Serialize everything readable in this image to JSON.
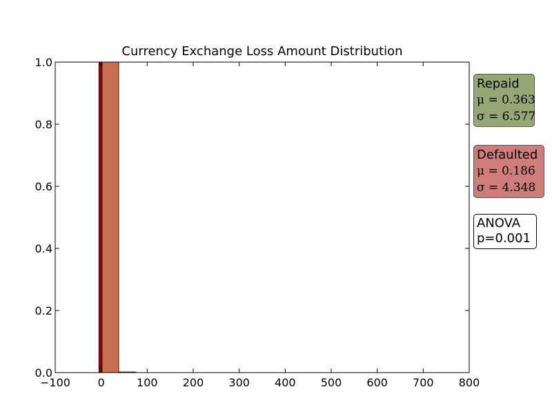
{
  "chart_data": {
    "type": "bar",
    "title": "Currency Exchange Loss Amount Distribution",
    "xlabel": "",
    "ylabel": "",
    "xlim": [
      -100,
      800
    ],
    "ylim": [
      0,
      1.0
    ],
    "x_ticks": [
      "−100",
      "0",
      "100",
      "200",
      "300",
      "400",
      "500",
      "600",
      "700",
      "800"
    ],
    "x_tick_values": [
      -100,
      0,
      100,
      200,
      300,
      400,
      500,
      600,
      700,
      800
    ],
    "y_ticks": [
      "0.0",
      "0.2",
      "0.4",
      "0.6",
      "0.8",
      "1.0"
    ],
    "y_tick_values": [
      0,
      0.2,
      0.4,
      0.6,
      0.8,
      1.0
    ],
    "grid": false,
    "series": [
      {
        "color": "#8b0000",
        "bins": [
          {
            "x0": -5,
            "x1": 2,
            "value": 1.0
          }
        ]
      },
      {
        "color": "#c0603e",
        "bins": [
          {
            "x0": 2,
            "x1": 38,
            "value": 1.0
          },
          {
            "x0": 38,
            "x1": 75,
            "value": 0.002
          }
        ]
      }
    ],
    "stat_boxes": {
      "repaid": {
        "label": "Repaid",
        "mu": "μ = 0.363",
        "sigma": "σ = 6.577",
        "color": "#93a874"
      },
      "defaulted": {
        "label": "Defaulted",
        "mu": "μ = 0.186",
        "sigma": "σ = 4.348",
        "color": "#cf7d7a"
      },
      "anova": {
        "line1": "ANOVA",
        "line2": "p=0.001"
      }
    }
  }
}
